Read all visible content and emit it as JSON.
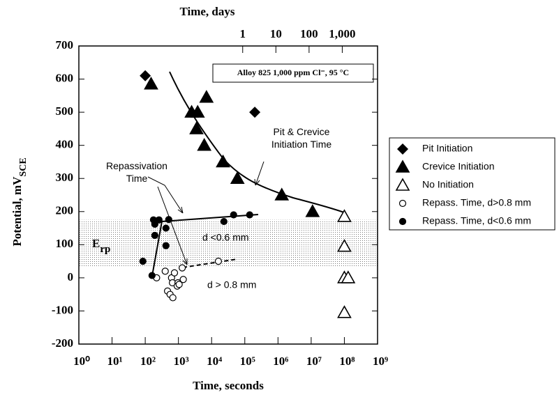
{
  "chart_data": {
    "type": "scatter",
    "log_x": true,
    "xlabel": "Time, seconds",
    "ylabel": "Potential, mV",
    "ylabel_sub": "SCE",
    "x2label": "Time, days",
    "annotation": "Alloy 825 1,000 ppm Cl⁻, 95 °C",
    "fit_label": "Pit & Crevice Initiation Time",
    "repass_label": "Repassivation Time",
    "band_label": "E",
    "band_label_sub": "rp",
    "band": [
      35,
      175
    ],
    "small_d_label": "d <0.6 mm",
    "large_d_label": "d > 0.8 mm",
    "xlim": [
      1,
      1000000000
    ],
    "ylim": [
      -200,
      700
    ],
    "xticks": [
      {
        "value": 1,
        "label": "10⁰"
      },
      {
        "value": 10,
        "label": "10¹"
      },
      {
        "value": 100,
        "label": "10²"
      },
      {
        "value": 1000,
        "label": "10³"
      },
      {
        "value": 10000,
        "label": "10⁴"
      },
      {
        "value": 100000,
        "label": "10⁵"
      },
      {
        "value": 1000000,
        "label": "10⁶"
      },
      {
        "value": 10000000,
        "label": "10⁷"
      },
      {
        "value": 100000000,
        "label": "10⁸"
      },
      {
        "value": 1000000000,
        "label": "10⁹"
      }
    ],
    "yticks": [
      -200,
      -100,
      0,
      100,
      200,
      300,
      400,
      500,
      600,
      700
    ],
    "x2ticks_days": [
      1,
      10,
      100,
      {
        "value": 1000,
        "label": "1,000"
      }
    ],
    "series": [
      {
        "name": "Pit Initiation",
        "marker": "diamond",
        "color": "#000000",
        "x": [
          100,
          200000
        ],
        "values": [
          610,
          500
        ]
      },
      {
        "name": "Crevice Initiation",
        "marker": "triangle-filled",
        "color": "#000000",
        "x": [
          150,
          2500,
          3800,
          3500,
          6000,
          7000,
          22000,
          60000,
          1300000,
          11000000
        ],
        "values": [
          585,
          500,
          500,
          450,
          400,
          545,
          350,
          300,
          250,
          200
        ]
      },
      {
        "name": "No Initiation",
        "marker": "triangle-open",
        "color": "#000000",
        "x": [
          100000000,
          100000000,
          100000000,
          130000000,
          100000000
        ],
        "values": [
          185,
          95,
          0,
          0,
          -105
        ]
      },
      {
        "name": "Repass. Time, d>0.8 mm",
        "marker": "circle-open",
        "color": "#000000",
        "x": [
          220,
          400,
          470,
          560,
          680,
          620,
          660,
          760,
          970,
          920,
          1050,
          1300,
          1400,
          16000
        ],
        "values": [
          0,
          20,
          -40,
          -50,
          -60,
          0,
          -15,
          15,
          -15,
          -25,
          -20,
          30,
          -5,
          50
        ]
      },
      {
        "name": "Repass. Time, d<0.6 mm",
        "marker": "circle-filled",
        "color": "#000000",
        "x": [
          85,
          160,
          177,
          195,
          195,
          260,
          420,
          420,
          510,
          23500,
          46000,
          140000
        ],
        "values": [
          50,
          7,
          175,
          162,
          128,
          175,
          150,
          97,
          176,
          170,
          190,
          190
        ]
      }
    ]
  }
}
